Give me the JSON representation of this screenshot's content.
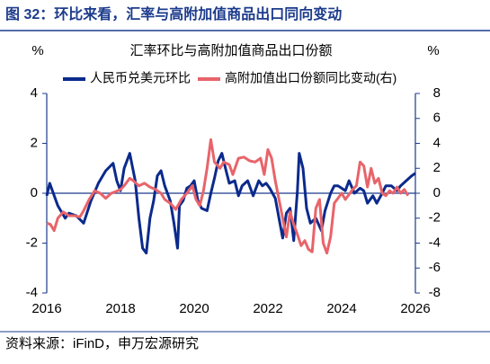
{
  "header": {
    "title": "图 32：环比来看，汇率与高附加值商品出口同向变动"
  },
  "source": "资料来源：iFinD，申万宏源研究",
  "chart_data": {
    "type": "line",
    "title": "汇率环比与高附加值商品出口份额",
    "y_label": "%",
    "y2_label": "%",
    "xlim": [
      2016,
      2026
    ],
    "xticks": [
      2016,
      2018,
      2020,
      2022,
      2024,
      2026
    ],
    "ylim": [
      -4,
      4
    ],
    "yticks": [
      -4,
      -2,
      0,
      2,
      4
    ],
    "y2lim": [
      -8,
      8
    ],
    "y2ticks": [
      -8,
      -6,
      -4,
      -2,
      0,
      2,
      4,
      6,
      8
    ],
    "series": [
      {
        "name": "人民币兑美元环比",
        "color": "#0b2a8c",
        "axis": "y",
        "x": [
          2016.0,
          2016.08,
          2016.3,
          2016.5,
          2016.6,
          2016.8,
          2017.0,
          2017.2,
          2017.4,
          2017.6,
          2017.8,
          2017.9,
          2018.0,
          2018.1,
          2018.25,
          2018.4,
          2018.5,
          2018.6,
          2018.7,
          2018.8,
          2018.9,
          2019.0,
          2019.1,
          2019.2,
          2019.35,
          2019.45,
          2019.55,
          2019.6,
          2019.7,
          2019.8,
          2019.9,
          2020.0,
          2020.1,
          2020.2,
          2020.35,
          2020.45,
          2020.55,
          2020.65,
          2020.75,
          2020.85,
          2020.95,
          2021.1,
          2021.2,
          2021.3,
          2021.45,
          2021.6,
          2021.75,
          2021.85,
          2021.95,
          2022.05,
          2022.2,
          2022.3,
          2022.4,
          2022.5,
          2022.6,
          2022.7,
          2022.8,
          2022.85,
          2022.95,
          2023.05,
          2023.15,
          2023.3,
          2023.45,
          2023.55,
          2023.7,
          2023.8,
          2023.9,
          2024.0,
          2024.1,
          2024.2,
          2024.35,
          2024.5,
          2024.6,
          2024.7,
          2024.85,
          2024.95,
          2025.1,
          2025.2,
          2025.35,
          2025.5,
          2025.6,
          2025.75,
          2025.9,
          2026.0
        ],
        "values": [
          -0.1,
          0.4,
          -0.5,
          -1.0,
          -0.8,
          -0.9,
          -1.2,
          -0.3,
          0.4,
          0.9,
          1.2,
          0.5,
          0.1,
          1.0,
          1.6,
          0.5,
          -1.0,
          -2.2,
          -2.4,
          -1.0,
          -0.3,
          0.7,
          0.9,
          0.3,
          -0.3,
          -1.2,
          -2.2,
          -0.5,
          -0.3,
          0.2,
          0.3,
          0.5,
          -0.3,
          -0.6,
          -0.7,
          0.0,
          0.6,
          1.3,
          1.6,
          1.0,
          0.4,
          0.5,
          -0.1,
          0.3,
          0.5,
          -0.1,
          0.5,
          0.3,
          0.4,
          0.2,
          -0.2,
          -1.0,
          -1.8,
          -0.8,
          -0.6,
          -1.9,
          0.1,
          1.6,
          1.0,
          -0.6,
          -1.2,
          -1.0,
          -1.5,
          -0.7,
          0.0,
          0.3,
          0.3,
          0.2,
          0.1,
          0.5,
          0.0,
          0.2,
          0.1,
          -0.4,
          -0.1,
          -0.4,
          0.0,
          0.3,
          0.3,
          0.1,
          0.3,
          0.5,
          0.7,
          0.8
        ]
      },
      {
        "name": "高附加值出口份额同比变动(右)",
        "color": "#e8646a",
        "axis": "y2",
        "x": [
          2016.0,
          2016.1,
          2016.2,
          2016.3,
          2016.45,
          2016.6,
          2016.75,
          2016.9,
          2017.0,
          2017.15,
          2017.3,
          2017.45,
          2017.6,
          2017.75,
          2017.85,
          2018.0,
          2018.1,
          2018.25,
          2018.35,
          2018.5,
          2018.65,
          2018.8,
          2018.95,
          2019.1,
          2019.2,
          2019.35,
          2019.5,
          2019.65,
          2019.8,
          2019.95,
          2020.05,
          2020.15,
          2020.25,
          2020.35,
          2020.45,
          2020.55,
          2020.7,
          2020.8,
          2020.95,
          2021.05,
          2021.2,
          2021.35,
          2021.5,
          2021.65,
          2021.8,
          2021.9,
          2022.0,
          2022.1,
          2022.2,
          2022.3,
          2022.4,
          2022.5,
          2022.6,
          2022.7,
          2022.8,
          2022.9,
          2023.0,
          2023.1,
          2023.2,
          2023.3,
          2023.4,
          2023.5,
          2023.6,
          2023.7,
          2023.8,
          2023.9,
          2024.0,
          2024.1,
          2024.2,
          2024.3,
          2024.4,
          2024.5,
          2024.6,
          2024.7,
          2024.8,
          2024.9,
          2025.0,
          2025.1,
          2025.2,
          2025.3,
          2025.4,
          2025.5,
          2025.6,
          2025.7,
          2025.8
        ],
        "values": [
          -2.4,
          -2.5,
          -3.0,
          -2.0,
          -1.5,
          -1.8,
          -1.8,
          -1.9,
          -1.4,
          -0.5,
          0.2,
          0.0,
          -0.4,
          0.0,
          0.1,
          0.3,
          0.6,
          1.2,
          1.0,
          0.6,
          0.8,
          0.5,
          0.3,
          0.0,
          -0.5,
          -0.8,
          -1.3,
          -0.5,
          0.0,
          0.6,
          -0.5,
          -1.0,
          0.2,
          2.0,
          4.3,
          2.5,
          2.0,
          2.5,
          2.3,
          1.5,
          2.8,
          2.9,
          2.6,
          2.5,
          2.8,
          1.5,
          3.5,
          2.8,
          1.0,
          -0.5,
          -2.0,
          -3.5,
          -1.5,
          -2.5,
          -3.3,
          -4.2,
          -3.8,
          -4.5,
          -4.7,
          -1.2,
          -0.5,
          -4.0,
          -4.8,
          -3.5,
          -0.8,
          -0.4,
          0.0,
          -0.5,
          -0.1,
          0.3,
          0.6,
          2.5,
          2.2,
          0.5,
          2.0,
          0.8,
          1.2,
          0.0,
          -0.2,
          0.2,
          0.0,
          0.5,
          0.0,
          0.3,
          -0.2
        ]
      }
    ]
  }
}
